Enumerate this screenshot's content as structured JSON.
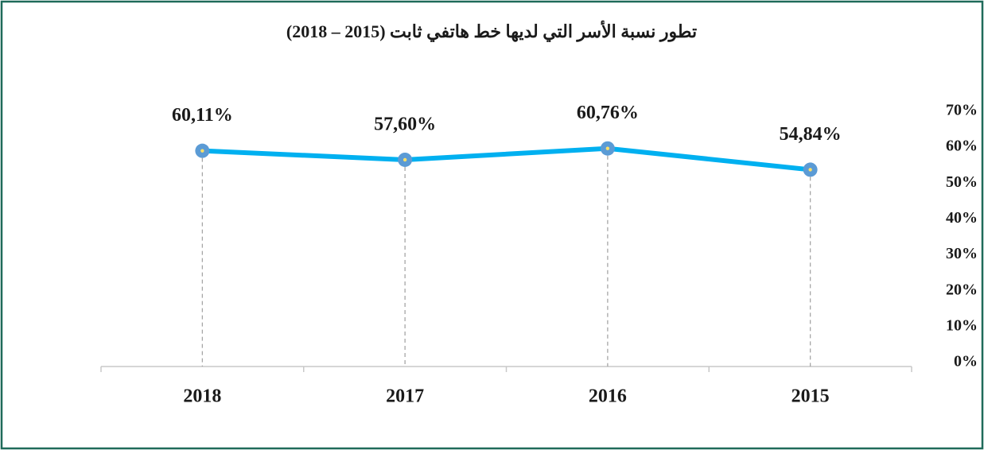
{
  "chart_data": {
    "type": "line",
    "title": "تطور نسبة الأسر التي لديها خط هاتفي ثابت (2015 – 2018)",
    "categories": [
      "2018",
      "2017",
      "2016",
      "2015"
    ],
    "series": [
      {
        "name": null,
        "color": "#00b0f0",
        "marker_color": "#5b9bd5",
        "values": [
          60.11,
          57.6,
          60.76,
          54.84
        ],
        "value_labels": [
          "60,11%",
          "57,60%",
          "60,76%",
          "54,84%"
        ]
      }
    ],
    "ylim": [
      0,
      70
    ],
    "yticks": [
      {
        "value": 0,
        "label": "0%"
      },
      {
        "value": 10,
        "label": "10%"
      },
      {
        "value": 20,
        "label": "20%"
      },
      {
        "value": 30,
        "label": "30%"
      },
      {
        "value": 40,
        "label": "40%"
      },
      {
        "value": 50,
        "label": "50%"
      },
      {
        "value": 60,
        "label": "60%"
      },
      {
        "value": 70,
        "label": "70%"
      }
    ],
    "grid": false
  }
}
